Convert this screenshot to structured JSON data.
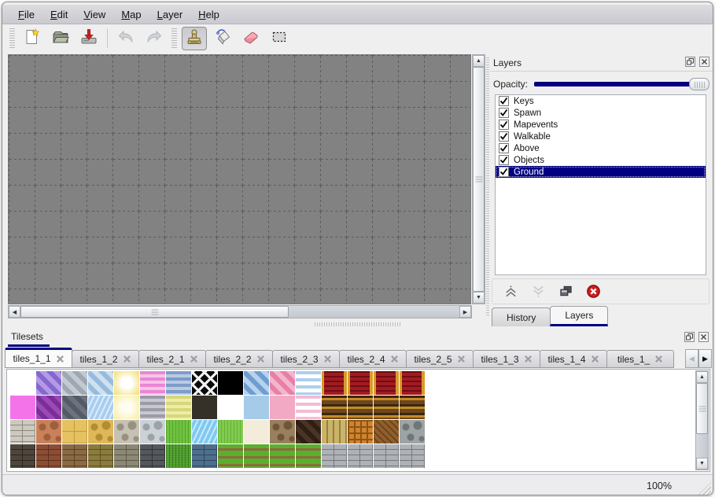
{
  "colors": {
    "accent": "#00007f",
    "selection_bg": "#000080",
    "selection_text": "#ffffff",
    "canvas_bg": "#828282",
    "grid_line": "#5c5c5c"
  },
  "menu": {
    "items": [
      "File",
      "Edit",
      "View",
      "Map",
      "Layer",
      "Help"
    ]
  },
  "toolbar": {
    "buttons": [
      {
        "id": "new",
        "icon": "new-file-icon",
        "selected": false
      },
      {
        "id": "open",
        "icon": "open-folder-icon",
        "selected": false
      },
      {
        "id": "save",
        "icon": "save-icon",
        "selected": false
      },
      {
        "id": "undo",
        "icon": "undo-icon",
        "selected": false,
        "disabled": true
      },
      {
        "id": "redo",
        "icon": "redo-icon",
        "selected": false,
        "disabled": true
      },
      {
        "id": "stamp",
        "icon": "stamp-tool-icon",
        "selected": true
      },
      {
        "id": "fill",
        "icon": "fill-tool-icon",
        "selected": false
      },
      {
        "id": "eraser",
        "icon": "eraser-tool-icon",
        "selected": false
      },
      {
        "id": "select",
        "icon": "select-tool-icon",
        "selected": false
      }
    ]
  },
  "layers_panel": {
    "title": "Layers",
    "opacity_label": "Opacity:",
    "opacity_percent": 100,
    "layers": [
      {
        "name": "Keys",
        "checked": true,
        "selected": false
      },
      {
        "name": "Spawn",
        "checked": true,
        "selected": false
      },
      {
        "name": "Mapevents",
        "checked": true,
        "selected": false
      },
      {
        "name": "Walkable",
        "checked": true,
        "selected": false
      },
      {
        "name": "Above",
        "checked": true,
        "selected": false
      },
      {
        "name": "Objects",
        "checked": true,
        "selected": false
      },
      {
        "name": "Ground",
        "checked": true,
        "selected": true
      }
    ],
    "buttons": [
      {
        "id": "move-up",
        "enabled": true
      },
      {
        "id": "move-down",
        "enabled": false
      },
      {
        "id": "duplicate",
        "enabled": true
      },
      {
        "id": "delete",
        "enabled": true
      }
    ],
    "tabs": [
      {
        "label": "History",
        "active": false
      },
      {
        "label": "Layers",
        "active": true
      }
    ]
  },
  "tilesets_panel": {
    "title": "Tilesets",
    "tabs": [
      {
        "label": "tiles_1_1",
        "active": true
      },
      {
        "label": "tiles_1_2",
        "active": false
      },
      {
        "label": "tiles_2_1",
        "active": false
      },
      {
        "label": "tiles_2_2",
        "active": false
      },
      {
        "label": "tiles_2_3",
        "active": false
      },
      {
        "label": "tiles_2_4",
        "active": false
      },
      {
        "label": "tiles_2_5",
        "active": false
      },
      {
        "label": "tiles_1_3",
        "active": false
      },
      {
        "label": "tiles_1_4",
        "active": false
      },
      {
        "label": "tiles_1_",
        "active": false,
        "truncated": true
      }
    ]
  },
  "tiles": {
    "rows": [
      [
        {
          "t": "empty"
        },
        {
          "t": "diag",
          "c1": "#b49ae6",
          "c2": "#8468cf"
        },
        {
          "t": "diag",
          "c1": "#c3c9d1",
          "c2": "#9fa8b2"
        },
        {
          "t": "diag",
          "c1": "#cfe0ef",
          "c2": "#96bcdd"
        },
        {
          "t": "glow",
          "c1": "#ffffff",
          "c2": "#f3e27e"
        },
        {
          "t": "hstripe",
          "c1": "#ea87d3",
          "c2": "#f6c4e9"
        },
        {
          "t": "hstripe",
          "c1": "#7e9cc6",
          "c2": "#b9cbe3"
        },
        {
          "t": "lattice",
          "c1": "#0a0a0a",
          "c2": "#f2f2f2"
        },
        {
          "t": "solid",
          "c1": "#000000"
        },
        {
          "t": "diag",
          "c1": "#b6d2ec",
          "c2": "#6f9dd2"
        },
        {
          "t": "diag",
          "c1": "#f3b5cd",
          "c2": "#e87fa6"
        },
        {
          "t": "wavy",
          "c1": "#aecfee",
          "c2": "#ffffff"
        },
        {
          "t": "carpet",
          "c1": "#a31a20",
          "c2": "#d99a2b"
        },
        {
          "t": "carpet",
          "c1": "#a31a20",
          "c2": "#d99a2b"
        },
        {
          "t": "carpet",
          "c1": "#a31a20",
          "c2": "#d99a2b"
        },
        {
          "t": "carpet",
          "c1": "#a31a20",
          "c2": "#d99a2b"
        }
      ],
      [
        {
          "t": "solid",
          "c1": "#f473e9"
        },
        {
          "t": "diag",
          "c1": "#9c49b8",
          "c2": "#7a2f96"
        },
        {
          "t": "diag",
          "c1": "#6d737e",
          "c2": "#555b66"
        },
        {
          "t": "water",
          "c1": "#a9cdf0",
          "c2": "#ffffff"
        },
        {
          "t": "glow",
          "c1": "#fffdf0",
          "c2": "#f7efae"
        },
        {
          "t": "hstripe",
          "c1": "#9b9ba6",
          "c2": "#c7c7d1"
        },
        {
          "t": "hstripe",
          "c1": "#d6d67c",
          "c2": "#ededa8"
        },
        {
          "t": "solid",
          "c1": "#353028"
        },
        {
          "t": "empty"
        },
        {
          "t": "solid",
          "c1": "#a6cbe9"
        },
        {
          "t": "solid",
          "c1": "#f2a9c3"
        },
        {
          "t": "wavy",
          "c1": "#f3bcd4",
          "c2": "#ffffff"
        },
        {
          "t": "goldstripe",
          "c1": "#6b471d",
          "c2": "#c58a26"
        },
        {
          "t": "goldstripe",
          "c1": "#6b471d",
          "c2": "#c58a26"
        },
        {
          "t": "goldstripe",
          "c1": "#6b471d",
          "c2": "#c58a26"
        },
        {
          "t": "goldstripe",
          "c1": "#6b471d",
          "c2": "#c58a26"
        }
      ],
      [
        {
          "t": "brick",
          "c1": "#cdc9c0",
          "c2": "#8d897f"
        },
        {
          "t": "stones",
          "c1": "#c98159",
          "c2": "#9e5f3c"
        },
        {
          "t": "tiles4",
          "c1": "#e5c162",
          "c2": "#bf9c3e"
        },
        {
          "t": "stones",
          "c1": "#dfb757",
          "c2": "#b38c34"
        },
        {
          "t": "stones",
          "c1": "#c5c1b4",
          "c2": "#96927f"
        },
        {
          "t": "stones",
          "c1": "#ccd1d5",
          "c2": "#9aa2ab"
        },
        {
          "t": "grass",
          "c1": "#6cc03d",
          "c2": "#57a52c"
        },
        {
          "t": "water",
          "c1": "#7ec9f2",
          "c2": "#e8f7ff"
        },
        {
          "t": "grass",
          "c1": "#7ec94b",
          "c2": "#66b236"
        },
        {
          "t": "solid",
          "c1": "#f4ecdb"
        },
        {
          "t": "stones",
          "c1": "#997f5e",
          "c2": "#6e563b"
        },
        {
          "t": "diag",
          "c1": "#4b3426",
          "c2": "#2e1f15"
        },
        {
          "t": "vstripe",
          "c1": "#c9b469",
          "c2": "#96803f"
        },
        {
          "t": "weave",
          "c1": "#d0842f",
          "c2": "#8e5414"
        },
        {
          "t": "herring",
          "c1": "#8f5f2e",
          "c2": "#6b4217"
        },
        {
          "t": "stones",
          "c1": "#9da4a3",
          "c2": "#6e7778"
        }
      ],
      [
        {
          "t": "brick",
          "c1": "#4e463d",
          "c2": "#2c2620"
        },
        {
          "t": "brick",
          "c1": "#8c4d35",
          "c2": "#5c2f1d"
        },
        {
          "t": "brick",
          "c1": "#8a6a44",
          "c2": "#5a4226"
        },
        {
          "t": "brick",
          "c1": "#8b7b3c",
          "c2": "#5c5122"
        },
        {
          "t": "brick",
          "c1": "#8b8876",
          "c2": "#5d5a48"
        },
        {
          "t": "brick",
          "c1": "#54585c",
          "c2": "#303438"
        },
        {
          "t": "grass",
          "c1": "#4f9e2e",
          "c2": "#387c1c"
        },
        {
          "t": "brick",
          "c1": "#4e6e8d",
          "c2": "#2e485f"
        },
        {
          "t": "grassdirt",
          "c1": "#5cae2e",
          "c2": "#8a6c3c"
        },
        {
          "t": "grassdirt",
          "c1": "#5cae2e",
          "c2": "#8a6c3c"
        },
        {
          "t": "grassdirt",
          "c1": "#5cae2e",
          "c2": "#8a6c3c"
        },
        {
          "t": "grassdirt",
          "c1": "#5cae2e",
          "c2": "#8a6c3c"
        },
        {
          "t": "brick",
          "c1": "#aeb2b6",
          "c2": "#74797e"
        },
        {
          "t": "brick",
          "c1": "#aeb2b6",
          "c2": "#74797e"
        },
        {
          "t": "brick",
          "c1": "#aeb2b6",
          "c2": "#74797e"
        },
        {
          "t": "brick",
          "c1": "#aeb2b6",
          "c2": "#74797e"
        }
      ]
    ]
  },
  "statusbar": {
    "zoom": "100%"
  }
}
